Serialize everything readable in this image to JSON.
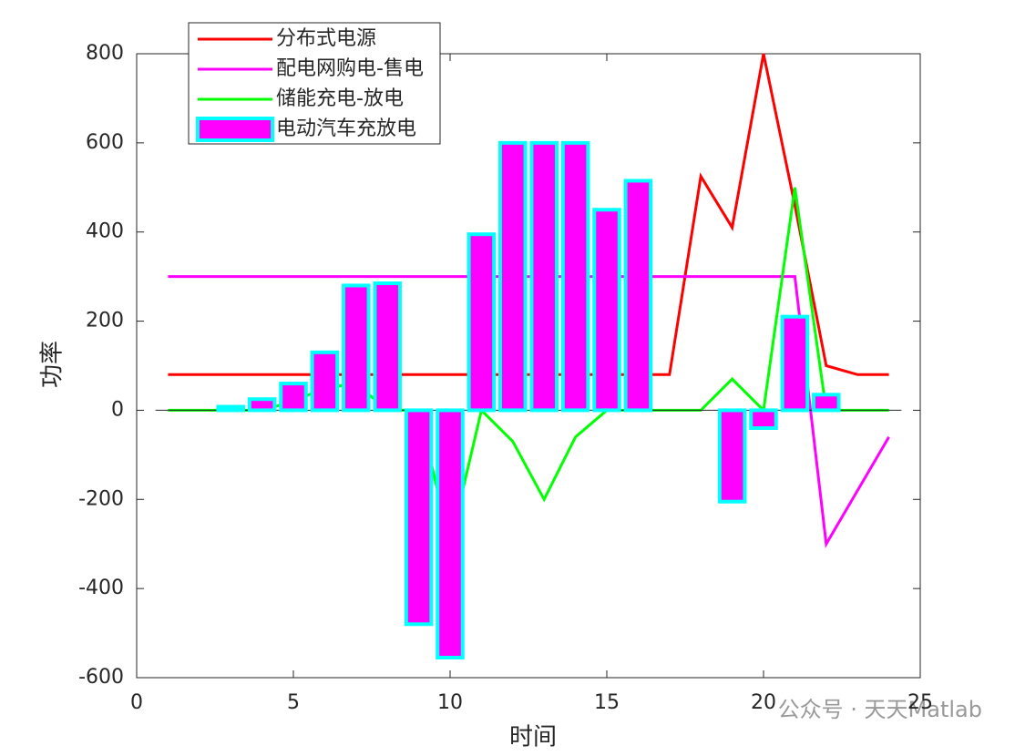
{
  "chart_data": {
    "type": "line_bar",
    "xlabel": "时间",
    "ylabel": "功率",
    "x": [
      1,
      2,
      3,
      4,
      5,
      6,
      7,
      8,
      9,
      10,
      11,
      12,
      13,
      14,
      15,
      16,
      17,
      18,
      19,
      20,
      21,
      22,
      23,
      24
    ],
    "series": [
      {
        "name": "分布式电源",
        "kind": "line",
        "color": "#ff0000",
        "values": [
          80,
          80,
          80,
          80,
          80,
          80,
          80,
          80,
          80,
          80,
          80,
          80,
          80,
          80,
          80,
          80,
          80,
          525,
          410,
          800,
          460,
          100,
          80,
          80
        ]
      },
      {
        "name": "配电网购电-售电",
        "kind": "line",
        "color": "#ff00ff",
        "values": [
          300,
          300,
          300,
          300,
          300,
          300,
          300,
          300,
          300,
          300,
          300,
          300,
          300,
          300,
          300,
          300,
          300,
          300,
          300,
          300,
          300,
          -300,
          -180,
          -60
        ]
      },
      {
        "name": "储能充电-放电",
        "kind": "line",
        "color": "#00ff00",
        "values": [
          0,
          0,
          0,
          0,
          20,
          50,
          60,
          0,
          0,
          -300,
          0,
          -70,
          -200,
          -60,
          0,
          0,
          0,
          0,
          70,
          0,
          500,
          0,
          0,
          0
        ]
      },
      {
        "name": "电动汽车充放电",
        "kind": "bar",
        "color": "#ff00ff",
        "edge": "#00ffff",
        "values": [
          0,
          0,
          8,
          25,
          60,
          130,
          280,
          285,
          -480,
          -555,
          395,
          600,
          600,
          600,
          450,
          515,
          0,
          0,
          -205,
          -40,
          210,
          35,
          0,
          0
        ]
      }
    ],
    "xlim": [
      0,
      25
    ],
    "xticks": [
      0,
      5,
      10,
      15,
      20,
      25
    ],
    "ylim": [
      -600,
      800
    ],
    "yticks": [
      -600,
      -400,
      -200,
      0,
      200,
      400,
      600,
      800
    ],
    "legend": "upper left",
    "watermark": "公众号 · 天天Matlab"
  }
}
